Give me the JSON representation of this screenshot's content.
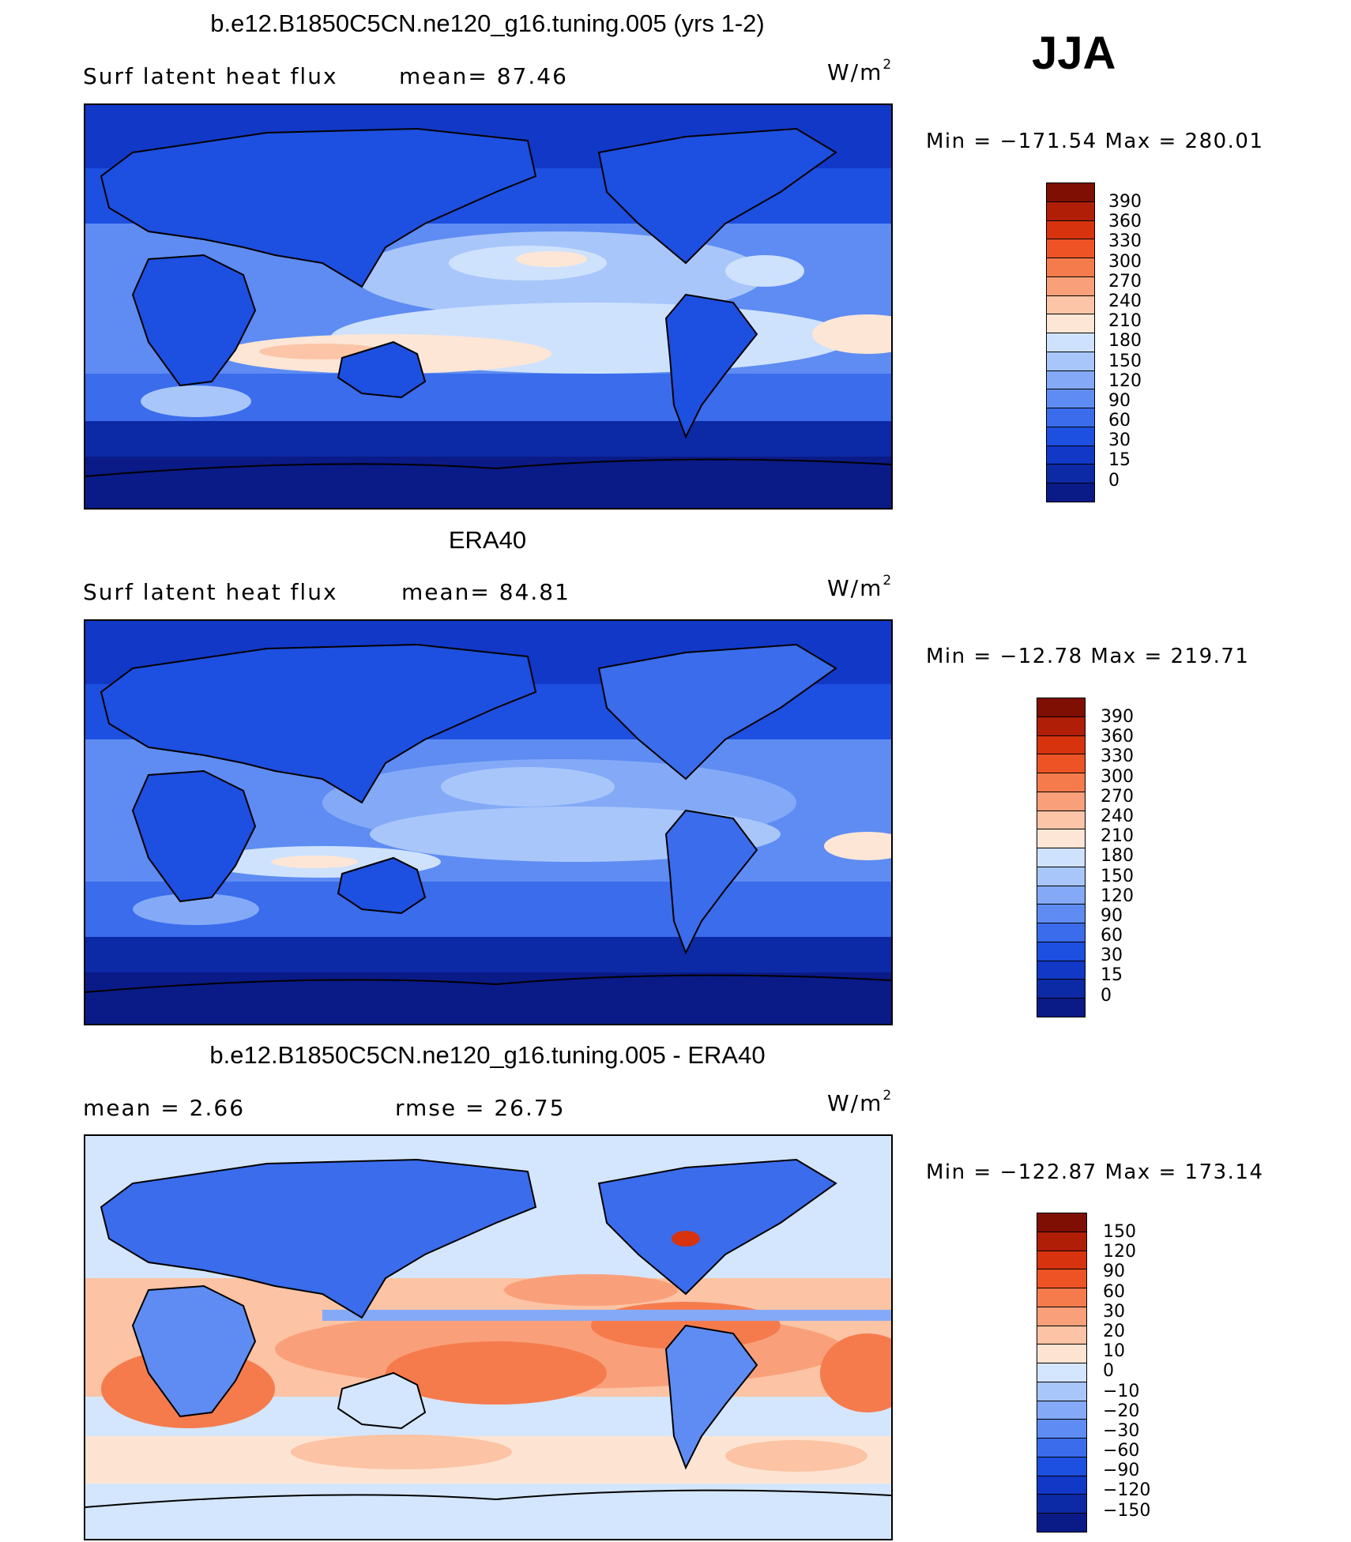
{
  "season": "JJA",
  "palette": {
    "abs": [
      "#0a1a86",
      "#0c2aa6",
      "#1238c8",
      "#1d4fe0",
      "#3a6cec",
      "#5e8cf2",
      "#84aaf7",
      "#a9c6fb",
      "#cfe2fd",
      "#fde6d6",
      "#fcc5a8",
      "#f9a07a",
      "#f57b4d",
      "#ee5325",
      "#d7330f",
      "#b01e07",
      "#7f0f03"
    ],
    "diff": [
      "#0a1a86",
      "#0c2aa6",
      "#1238c8",
      "#1d4fe0",
      "#3a6cec",
      "#5e8cf2",
      "#84aaf7",
      "#a9c6fb",
      "#d4e6fd",
      "#fde4d2",
      "#fcc3a4",
      "#f9a07a",
      "#f57b4d",
      "#ee5325",
      "#d7330f",
      "#b01e07",
      "#7f0f03"
    ],
    "land": "#1748d8",
    "ocean_deep": "#0a1a86"
  },
  "panels": [
    {
      "title": "b.e12.B1850C5CN.ne120_g16.tuning.005 (yrs 1-2)",
      "left_label": "Surf  latent  heat  flux",
      "mid_label": "mean=   87.46",
      "units": "W/m",
      "units_sup": "2",
      "minmax": "Min  =  −171.54  Max  =  280.01",
      "scale": [
        "390",
        "360",
        "330",
        "300",
        "270",
        "240",
        "210",
        "180",
        "150",
        "120",
        "90",
        "60",
        "30",
        "15",
        "0"
      ],
      "kind": "abs"
    },
    {
      "title": "ERA40",
      "left_label": "Surf  latent  heat  flux",
      "mid_label": "mean=   84.81",
      "units": "W/m",
      "units_sup": "2",
      "minmax": "Min  =  −12.78  Max  =  219.71",
      "scale": [
        "390",
        "360",
        "330",
        "300",
        "270",
        "240",
        "210",
        "180",
        "150",
        "120",
        "90",
        "60",
        "30",
        "15",
        "0"
      ],
      "kind": "abs"
    },
    {
      "title": "b.e12.B1850C5CN.ne120_g16.tuning.005 - ERA40",
      "left_label": "mean  =     2.66",
      "mid_label": "rmse  =    26.75",
      "units": "W/m",
      "units_sup": "2",
      "minmax": "Min  =  −122.87  Max  =  173.14",
      "scale": [
        "150",
        "120",
        "90",
        "60",
        "30",
        "20",
        "10",
        "0",
        "−10",
        "−20",
        "−30",
        "−60",
        "−90",
        "−120",
        "−150"
      ],
      "kind": "diff"
    }
  ]
}
